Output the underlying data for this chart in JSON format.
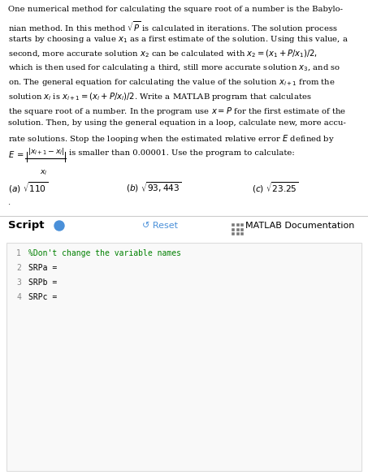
{
  "bg_color": "#ffffff",
  "text_color": "#000000",
  "paragraph_plain": [
    "One numerical method for calculating the square root of a number is the Babylo-",
    "nian method. In this method  is calculated in iterations. The solution process",
    "starts by choosing a value   as a first estimate of the solution. Using this value, a",
    "second, more accurate solution   can be calculated with   = (  +P/  )/2,",
    "which is then used for calculating a third, still more accurate solution  , and so",
    "on. The general equation for calculating the value of the solution        from the",
    "solution   is       = (  +P/  )/2. Write a MATLAB program that calculates",
    "the square root of a number. In the program use x = P for the first estimate of the",
    "solution. Then, by using the general equation in a loop, calculate new, more accu-",
    "rate solutions. Stop the looping when the estimated relative error E defined by"
  ],
  "font_size_body": 7.2,
  "font_size_script": 9.5,
  "font_size_code": 7.0,
  "separator_color": "#cccccc",
  "code_bg": "#f9f9f9",
  "code_border": "#dddddd",
  "reset_color": "#4a90d9",
  "line_num_color": "#888888",
  "comment_color": "#008000",
  "code_color": "#000000"
}
